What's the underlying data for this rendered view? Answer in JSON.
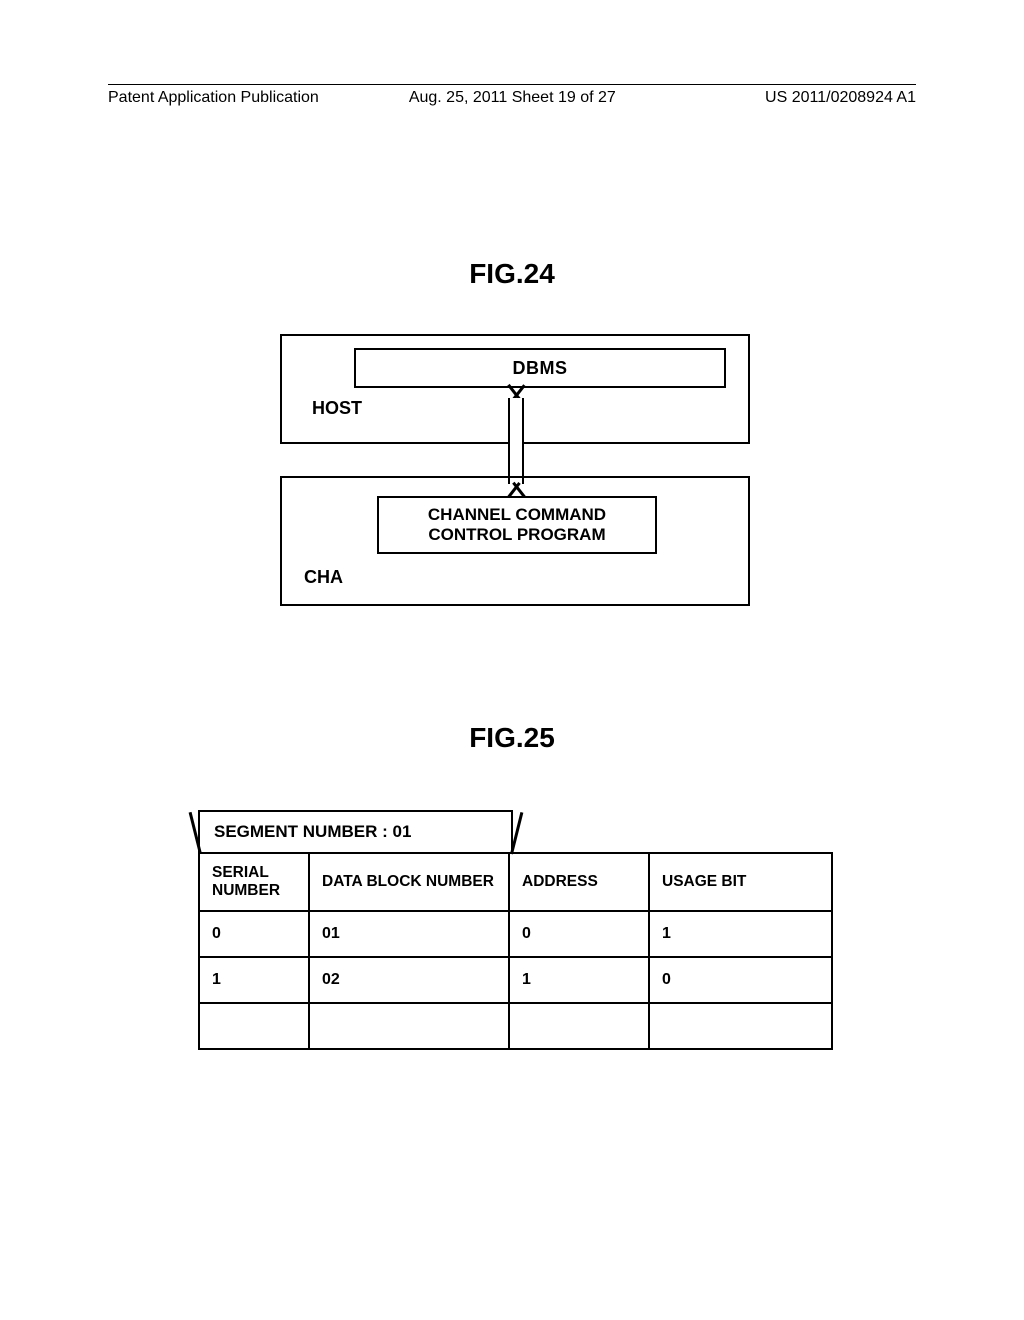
{
  "header": {
    "left": "Patent Application Publication",
    "mid": "Aug. 25, 2011  Sheet 19 of 27",
    "right": "US 2011/0208924 A1"
  },
  "fig24": {
    "label": "FIG.24",
    "dbms": "DBMS",
    "host": "HOST",
    "ccp": "CHANNEL COMMAND\nCONTROL PROGRAM",
    "cha": "CHA"
  },
  "fig25": {
    "label": "FIG.25",
    "segment_tab": "SEGMENT NUMBER : 01",
    "columns": [
      "SERIAL NUMBER",
      "DATA BLOCK NUMBER",
      "ADDRESS",
      "USAGE BIT"
    ],
    "rows": [
      [
        "0",
        "01",
        "0",
        "1"
      ],
      [
        "1",
        "02",
        "1",
        "0"
      ],
      [
        "",
        "",
        "",
        ""
      ]
    ]
  },
  "style": {
    "border_color": "#000000",
    "bg": "#ffffff",
    "font_bold_size": 18,
    "fig_label_size": 28
  }
}
